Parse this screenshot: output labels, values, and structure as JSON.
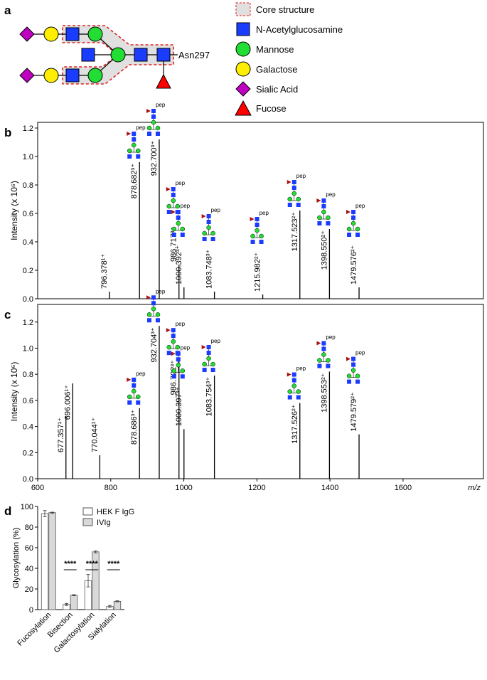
{
  "panels": [
    "a",
    "b",
    "c",
    "d"
  ],
  "diagram": {
    "site_label": "Asn297",
    "legend": [
      "Core structure",
      "N-Acetylglucosamine",
      "Mannose",
      "Galactose",
      "Sialic Acid",
      "Fucose"
    ]
  },
  "chart_data": [
    {
      "type": "spectrum",
      "ylabel": "Intensity (x 10⁶)",
      "glycan_label": "pep",
      "color": "#000000",
      "xlim": [
        600,
        1820
      ],
      "ylim": [
        0,
        1.24
      ],
      "yticks": [
        {
          "value": 0,
          "label": "0.0"
        },
        0.2,
        0.4,
        0.6,
        0.8,
        {
          "value": 1,
          "label": "1.0"
        },
        1.2
      ],
      "x": [
        796.378,
        878.682,
        932.7,
        986.717,
        1000.392,
        1083.748,
        1215.982,
        1317.523,
        1398.55,
        1479.576
      ],
      "values": [
        0.05,
        0.96,
        1.12,
        0.24,
        0.08,
        0.05,
        0.03,
        0.62,
        0.49,
        0.08
      ],
      "peak_labels": [
        "796.378¹⁺",
        "878.682³⁺",
        "932.700³⁺",
        "986.717³⁺",
        "1000.392³⁺",
        "1083.748³⁺",
        "1215.982²⁺",
        "1317.523²⁺",
        "1398.550²⁺",
        "1479.576²⁺"
      ]
    },
    {
      "type": "spectrum",
      "ylabel": "Intensity (x 10⁶)",
      "xlabel": "m/z",
      "glycan_label": "pep",
      "color": "#000000",
      "xlim": [
        600,
        1820
      ],
      "ylim": [
        0,
        1.335
      ],
      "xticks": [
        600,
        800,
        1000,
        1200,
        1400,
        1600
      ],
      "yticks": [
        {
          "value": 0,
          "label": "0.0"
        },
        0.2,
        0.4,
        0.6,
        0.8,
        {
          "value": 1,
          "label": "1.0"
        },
        1.2
      ],
      "x": [
        677.357,
        696.006,
        770.044,
        878.686,
        932.704,
        986.722,
        1000.397,
        1083.754,
        1317.526,
        1398.553,
        1479.579
      ],
      "values": [
        0.48,
        0.73,
        0.18,
        0.54,
        1.17,
        0.92,
        0.38,
        0.79,
        0.58,
        0.82,
        0.34
      ],
      "peak_labels": [
        "677.357¹⁺",
        "696.006¹⁺",
        "770.044¹⁺",
        "878.686³⁺",
        "932.704³⁺",
        "986.722³⁺",
        "1000.397³⁺",
        "1083.754³⁺",
        "1317.526²⁺",
        "1398.553²⁺",
        "1479.579²⁺"
      ]
    },
    {
      "type": "bar",
      "ylabel": "Glycosylation (%)",
      "categories": [
        "Fucosylation",
        "Bisection",
        "Galactosylation",
        "Sialylation"
      ],
      "ylim": [
        0,
        100
      ],
      "yticks": [
        0,
        20,
        40,
        60,
        80,
        100
      ],
      "series": [
        {
          "name": "HEK F IgG",
          "color": "#ffffff",
          "values": [
            93,
            5,
            28,
            3
          ],
          "errors": [
            3,
            1,
            6,
            1
          ]
        },
        {
          "name": "IVIg",
          "color": "#d9d9d9",
          "values": [
            94,
            14,
            56,
            8
          ],
          "errors": [
            0.5,
            0.5,
            1,
            0.5
          ]
        }
      ],
      "significance": [
        null,
        "****",
        "****",
        "****"
      ]
    }
  ]
}
